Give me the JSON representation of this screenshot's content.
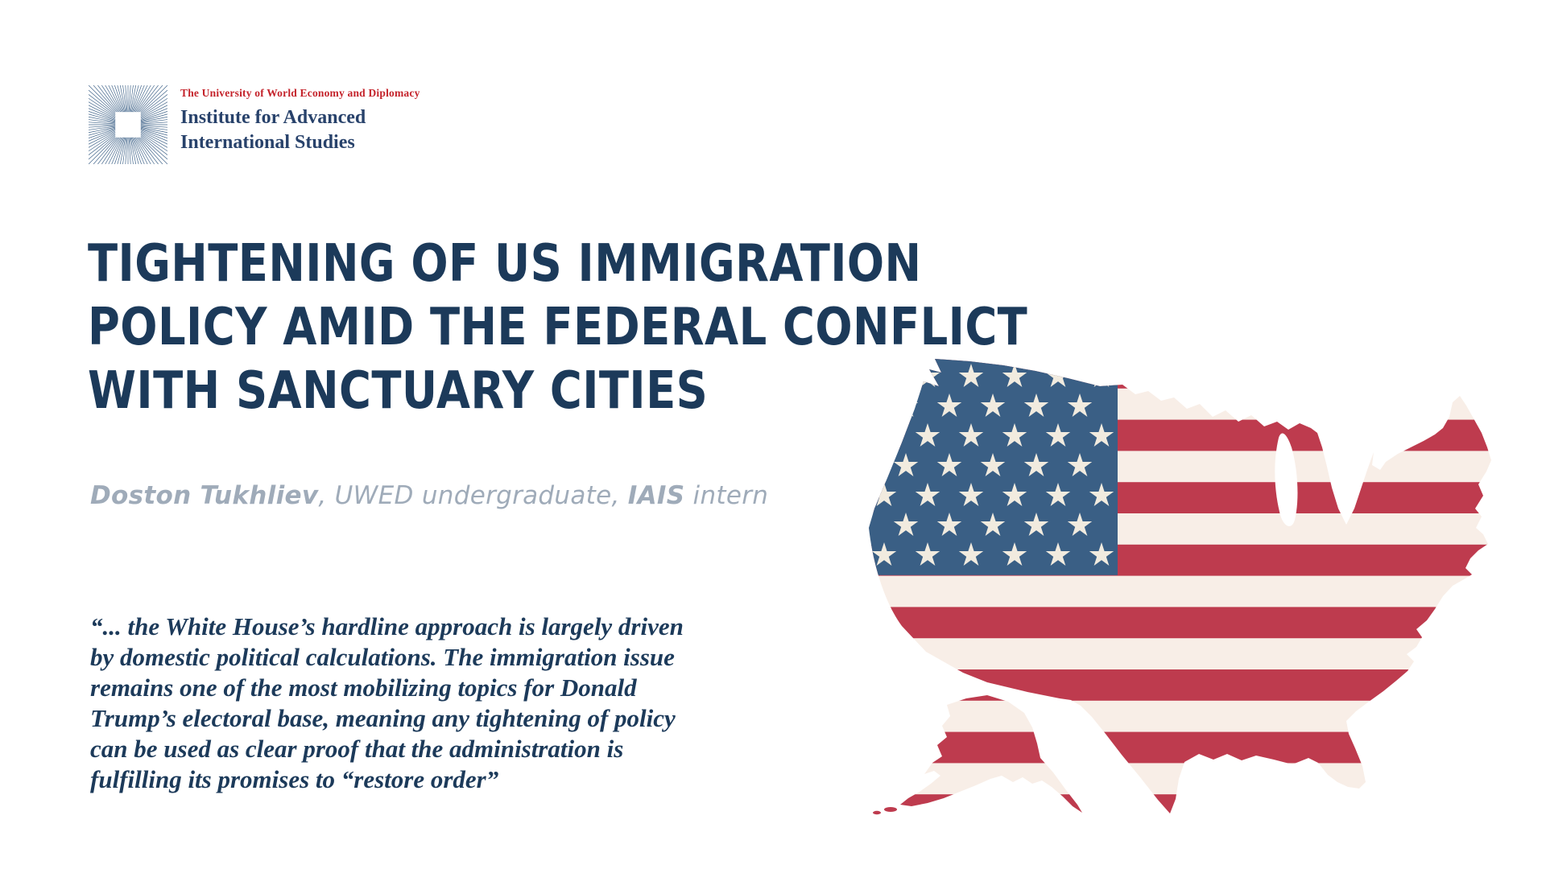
{
  "logo": {
    "university_line": "The University of World Economy and Diplomacy",
    "institute_line1": "Institute for Advanced",
    "institute_line2": "International Studies"
  },
  "title": "TIGHTENING OF US IMMIGRATION\nPOLICY AMID THE FEDERAL CONFLICT\nWITH SANCTUARY CITIES",
  "author": {
    "name": "Doston Tukhliev",
    "middle": ", UWED undergraduate, ",
    "org": "IAIS",
    "role": " intern"
  },
  "quote": "“... the White House’s hardline approach is largely driven\nby domestic political calculations. The immigration issue\nremains one of the most mobilizing topics for Donald\nTrump’s electoral base, meaning any tightening of policy\ncan be used as clear proof that the administration is\nfulfilling its promises to “restore order”",
  "colors": {
    "title_navy": "#1c3a5a",
    "logo_red": "#c4232b",
    "logo_navy": "#28426b",
    "author_gray": "#9fabb9",
    "flag_blue": "#3a5f85",
    "flag_red": "#be3b4e",
    "flag_cream": "#f8eee7",
    "flag_star": "#f1ebdf"
  },
  "flag_map": {
    "description": "usa-map-filled-with-american-flag",
    "star_rows": [
      6,
      5,
      6,
      5,
      6,
      5,
      6
    ]
  }
}
